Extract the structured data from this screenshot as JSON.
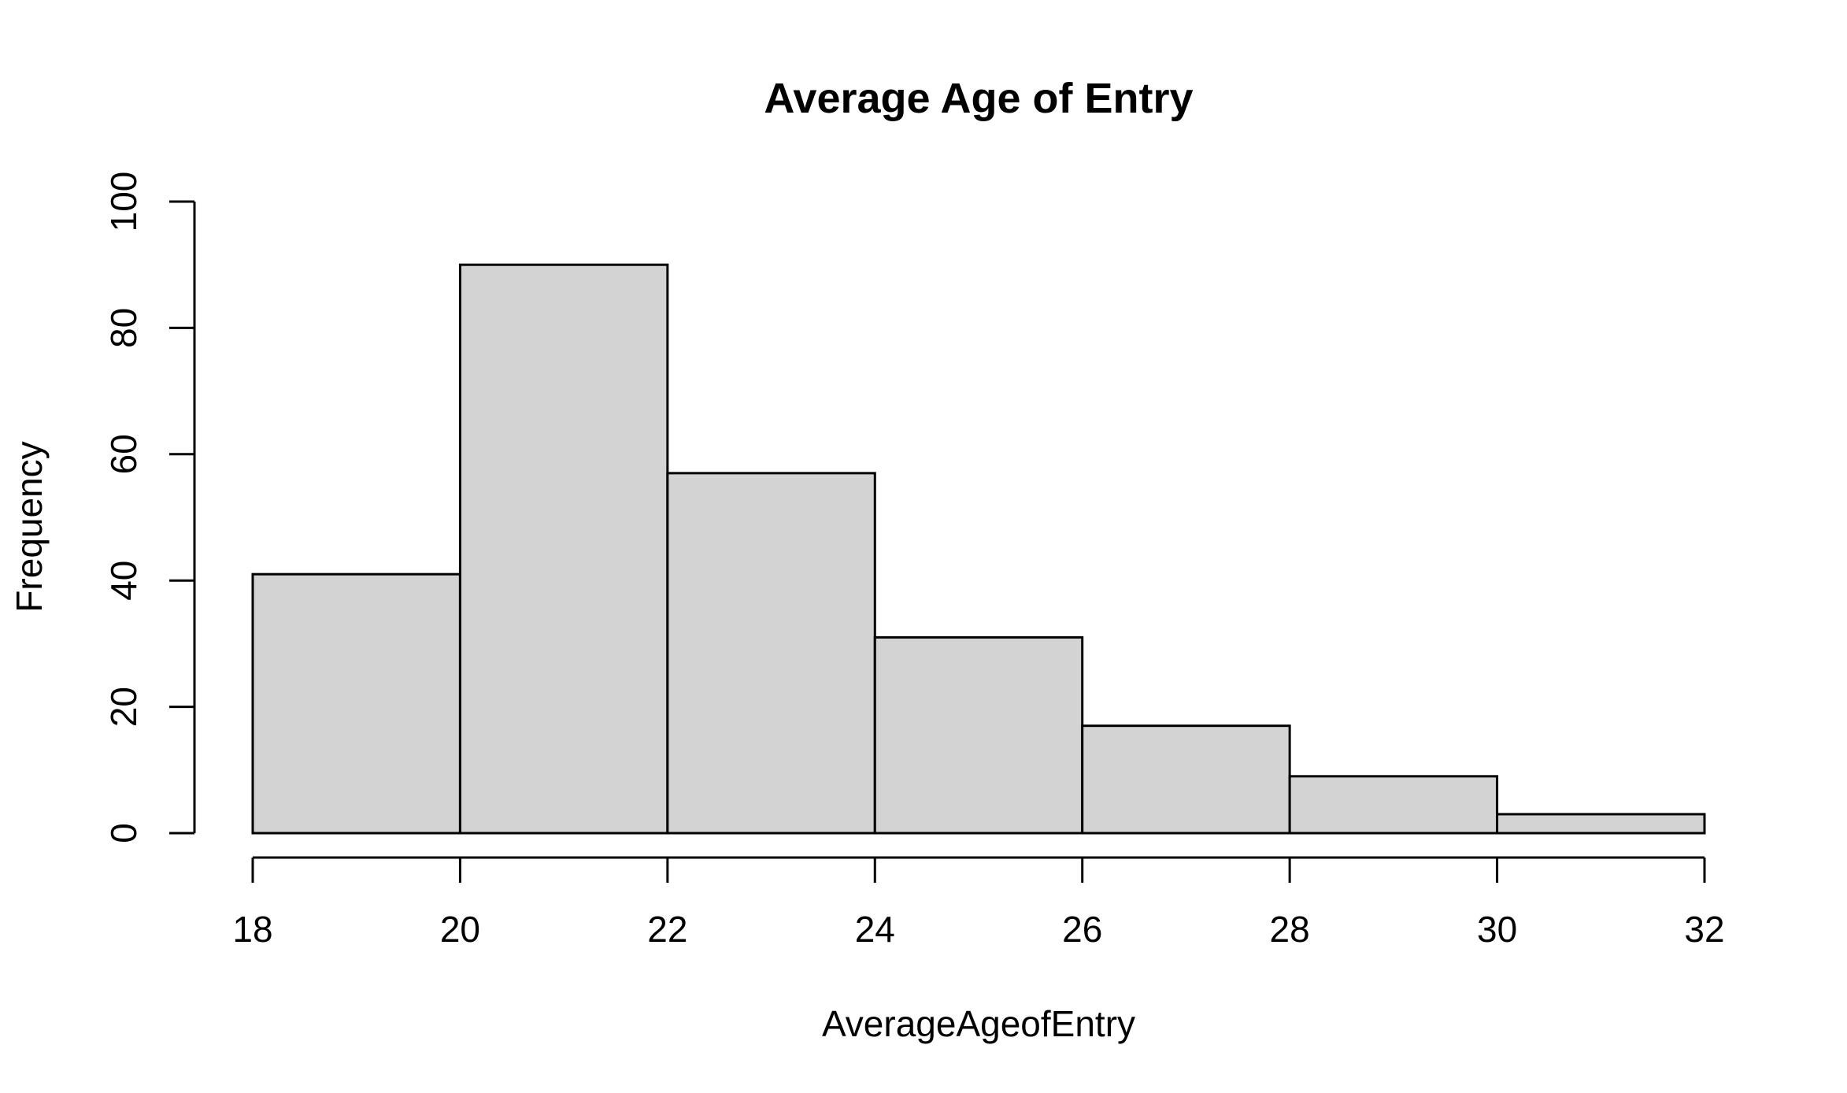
{
  "chart_data": {
    "type": "bar",
    "title": "Average Age of Entry",
    "xlabel": "AverageAgeofEntry",
    "ylabel": "Frequency",
    "bins": [
      {
        "from": 18,
        "to": 20,
        "count": 41
      },
      {
        "from": 20,
        "to": 22,
        "count": 90
      },
      {
        "from": 22,
        "to": 24,
        "count": 57
      },
      {
        "from": 24,
        "to": 26,
        "count": 31
      },
      {
        "from": 26,
        "to": 28,
        "count": 17
      },
      {
        "from": 28,
        "to": 30,
        "count": 9
      },
      {
        "from": 30,
        "to": 32,
        "count": 3
      }
    ],
    "x_ticks": [
      18,
      20,
      22,
      24,
      26,
      28,
      30,
      32
    ],
    "y_ticks": [
      0,
      20,
      40,
      60,
      80,
      100
    ],
    "xlim": [
      18,
      32
    ],
    "ylim": [
      0,
      100
    ],
    "grid": false,
    "bar_color": "#d3d3d3",
    "bar_border_color": "#000000"
  }
}
